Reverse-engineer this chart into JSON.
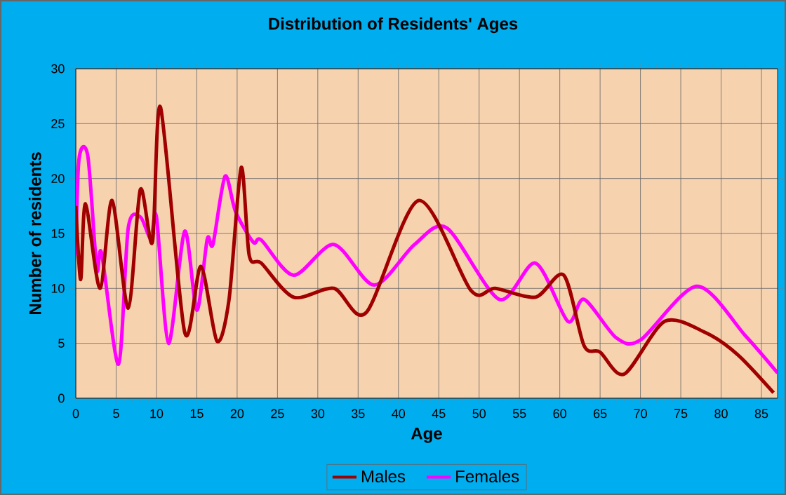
{
  "chart_data": {
    "type": "line",
    "title": "Distribution of Residents' Ages",
    "xlabel": "Age",
    "ylabel": "Number of residents",
    "xlim": [
      0,
      87
    ],
    "ylim": [
      0,
      30
    ],
    "xticks": [
      0,
      5,
      10,
      15,
      20,
      25,
      30,
      35,
      40,
      45,
      50,
      55,
      60,
      65,
      70,
      75,
      80,
      85
    ],
    "yticks": [
      0,
      5,
      10,
      15,
      20,
      25,
      30
    ],
    "grid": true,
    "legend": "bottom",
    "marker": "none",
    "line_style": "solid",
    "series": [
      {
        "name": "Males",
        "color": "#a00000",
        "x": [
          0,
          0.6,
          1.2,
          3,
          4.5,
          6.5,
          8,
          9.5,
          10.5,
          13.5,
          15.5,
          17.5,
          19,
          20.5,
          21.5,
          23,
          27,
          32,
          36,
          42.5,
          49,
          52,
          57,
          60.5,
          63,
          65,
          68,
          73,
          78,
          82,
          86.5
        ],
        "values": [
          17.5,
          10.8,
          17.7,
          10,
          18,
          8.2,
          19,
          14.2,
          26.5,
          6,
          12,
          5.2,
          9,
          21,
          13,
          12.3,
          9.2,
          10,
          7.8,
          18,
          9.8,
          10,
          9.2,
          11.2,
          4.8,
          4.2,
          2.2,
          7,
          6,
          4,
          0.5
        ]
      },
      {
        "name": "Females",
        "color": "#ff00ff",
        "x": [
          0,
          0.4,
          1.5,
          2.6,
          3.2,
          5.3,
          6.5,
          8,
          9.3,
          10,
          11.5,
          13.5,
          15,
          16.3,
          17,
          18.5,
          19.8,
          22,
          23,
          27,
          32,
          37,
          42,
          46,
          52.5,
          57,
          61,
          63,
          67,
          70,
          77,
          83,
          87
        ],
        "values": [
          13,
          21.8,
          22,
          11.8,
          13.2,
          3.1,
          15.5,
          16.5,
          14.5,
          16.5,
          5,
          15.2,
          8,
          14.5,
          14,
          20.2,
          17,
          14.2,
          14.4,
          11.2,
          14,
          10.3,
          14,
          15.5,
          9,
          12.3,
          7,
          9,
          5.5,
          5.3,
          10.2,
          5.7,
          2.3
        ]
      }
    ]
  }
}
